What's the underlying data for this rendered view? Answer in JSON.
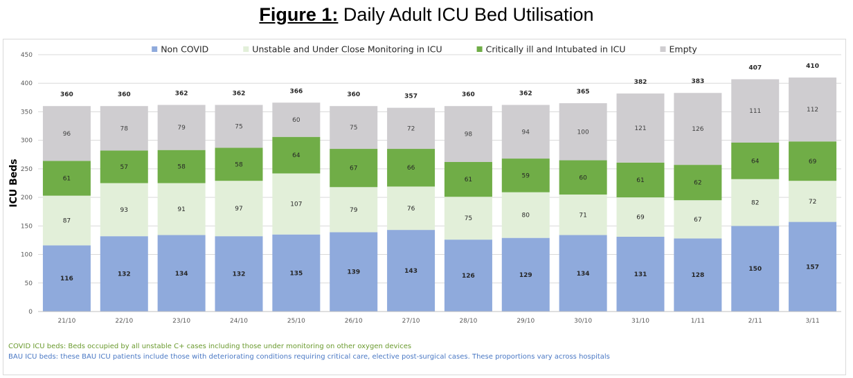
{
  "figure": {
    "title_lead": "Figure 1:",
    "title_rest": " Daily Adult ICU Bed Utilisation"
  },
  "notes": {
    "covid": "COVID ICU beds: Beds occupied by all unstable C+ cases including those under monitoring on other oxygen devices",
    "bau": "BAU ICU beds: these BAU ICU patients include those with deteriorating conditions requiring critical care, elective post-surgical cases. These proportions vary across hospitals"
  },
  "chart_data": {
    "type": "bar",
    "stacked": true,
    "title": "Daily Adult ICU Bed Utilisation",
    "xlabel": "",
    "ylabel": "ICU Beds",
    "ylim": [
      0,
      450
    ],
    "yticks": [
      0,
      50,
      100,
      150,
      200,
      250,
      300,
      350,
      400,
      450
    ],
    "grid": true,
    "legend_position": "top",
    "categories": [
      "21/10",
      "22/10",
      "23/10",
      "24/10",
      "25/10",
      "26/10",
      "27/10",
      "28/10",
      "29/10",
      "30/10",
      "31/10",
      "1/11",
      "2/11",
      "3/11"
    ],
    "series": [
      {
        "name": "Non COVID",
        "color": "#8faadc",
        "values": [
          116,
          132,
          134,
          132,
          135,
          139,
          143,
          126,
          129,
          134,
          131,
          128,
          150,
          157
        ]
      },
      {
        "name": "Unstable and Under Close Monitoring in ICU",
        "color": "#e2efd9",
        "values": [
          87,
          93,
          91,
          97,
          107,
          79,
          76,
          75,
          80,
          71,
          69,
          67,
          82,
          72
        ]
      },
      {
        "name": "Critically ill and Intubated in ICU",
        "color": "#70ad47",
        "values": [
          61,
          57,
          58,
          58,
          64,
          67,
          66,
          61,
          59,
          60,
          61,
          62,
          64,
          69
        ]
      },
      {
        "name": "Empty",
        "color": "#cfcdd0",
        "values": [
          96,
          78,
          79,
          75,
          60,
          75,
          72,
          98,
          94,
          100,
          121,
          126,
          111,
          112
        ]
      }
    ],
    "totals": [
      360,
      360,
      362,
      362,
      366,
      360,
      357,
      360,
      362,
      365,
      382,
      383,
      407,
      410
    ]
  }
}
